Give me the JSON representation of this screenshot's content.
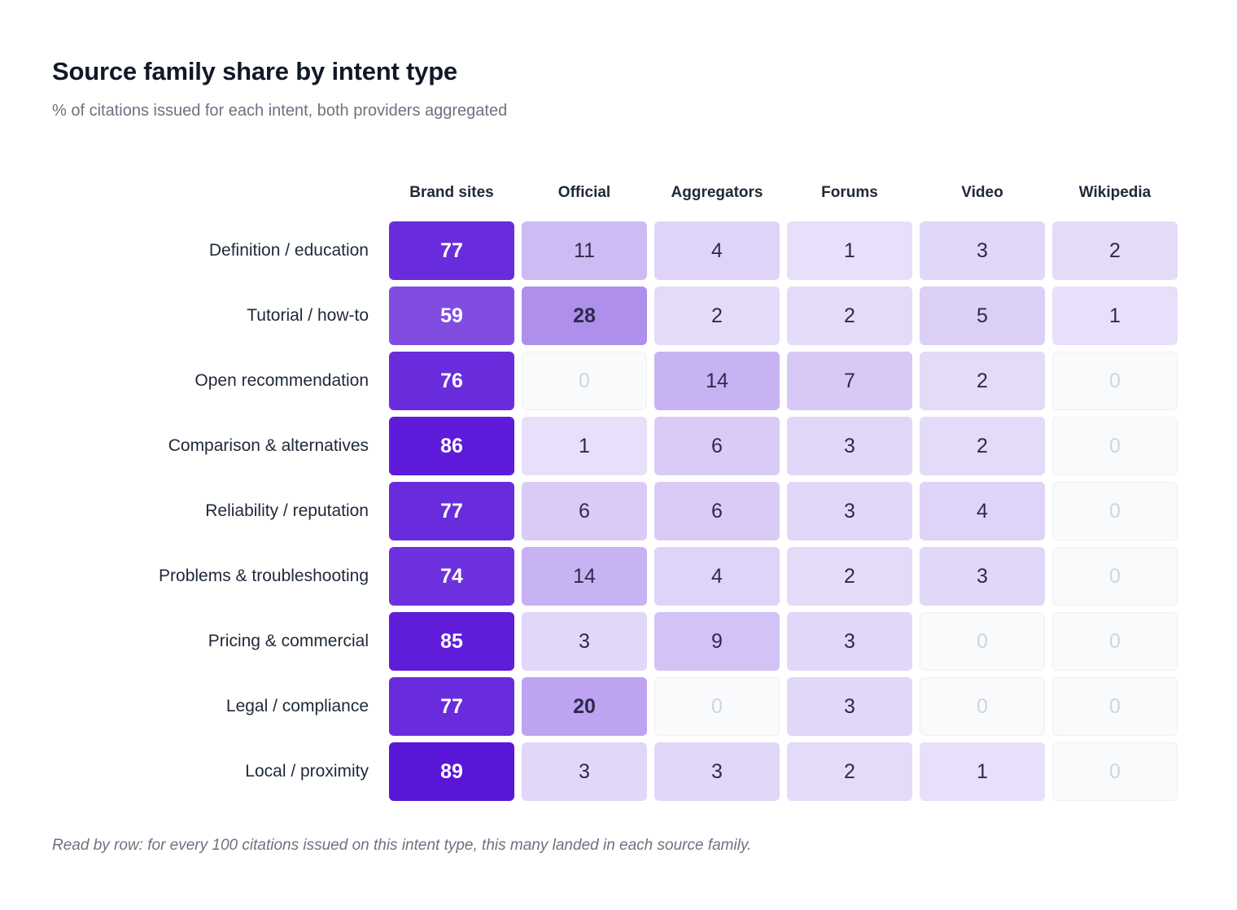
{
  "header": {
    "title": "Source family share by intent type",
    "subtitle": "% of citations issued for each intent, both providers aggregated"
  },
  "footnote": "Read by row: for every 100 citations issued on this intent type, this many landed in each source family.",
  "colors": {
    "low": "#ede7fb",
    "high": "#5a16d8",
    "zero_bg": "#f9fafb",
    "zero_text": "#d1d5db",
    "dark_text": "#2e2a4d",
    "light_text": "#ffffff"
  },
  "chart_data": {
    "type": "heatmap",
    "title": "Source family share by intent type",
    "subtitle": "% of citations issued for each intent, both providers aggregated",
    "columns": [
      "Brand sites",
      "Official",
      "Aggregators",
      "Forums",
      "Video",
      "Wikipedia"
    ],
    "rows": [
      "Definition / education",
      "Tutorial / how-to",
      "Open recommendation",
      "Comparison & alternatives",
      "Reliability / reputation",
      "Problems & troubleshooting",
      "Pricing & commercial",
      "Legal / compliance",
      "Local / proximity"
    ],
    "values": [
      [
        77,
        11,
        4,
        1,
        3,
        2
      ],
      [
        59,
        28,
        2,
        2,
        5,
        1
      ],
      [
        76,
        0,
        14,
        7,
        2,
        0
      ],
      [
        86,
        1,
        6,
        3,
        2,
        0
      ],
      [
        77,
        6,
        6,
        3,
        4,
        0
      ],
      [
        74,
        14,
        4,
        2,
        3,
        0
      ],
      [
        85,
        3,
        9,
        3,
        0,
        0
      ],
      [
        77,
        20,
        0,
        3,
        0,
        0
      ],
      [
        89,
        3,
        3,
        2,
        1,
        0
      ]
    ],
    "unit": "%"
  }
}
